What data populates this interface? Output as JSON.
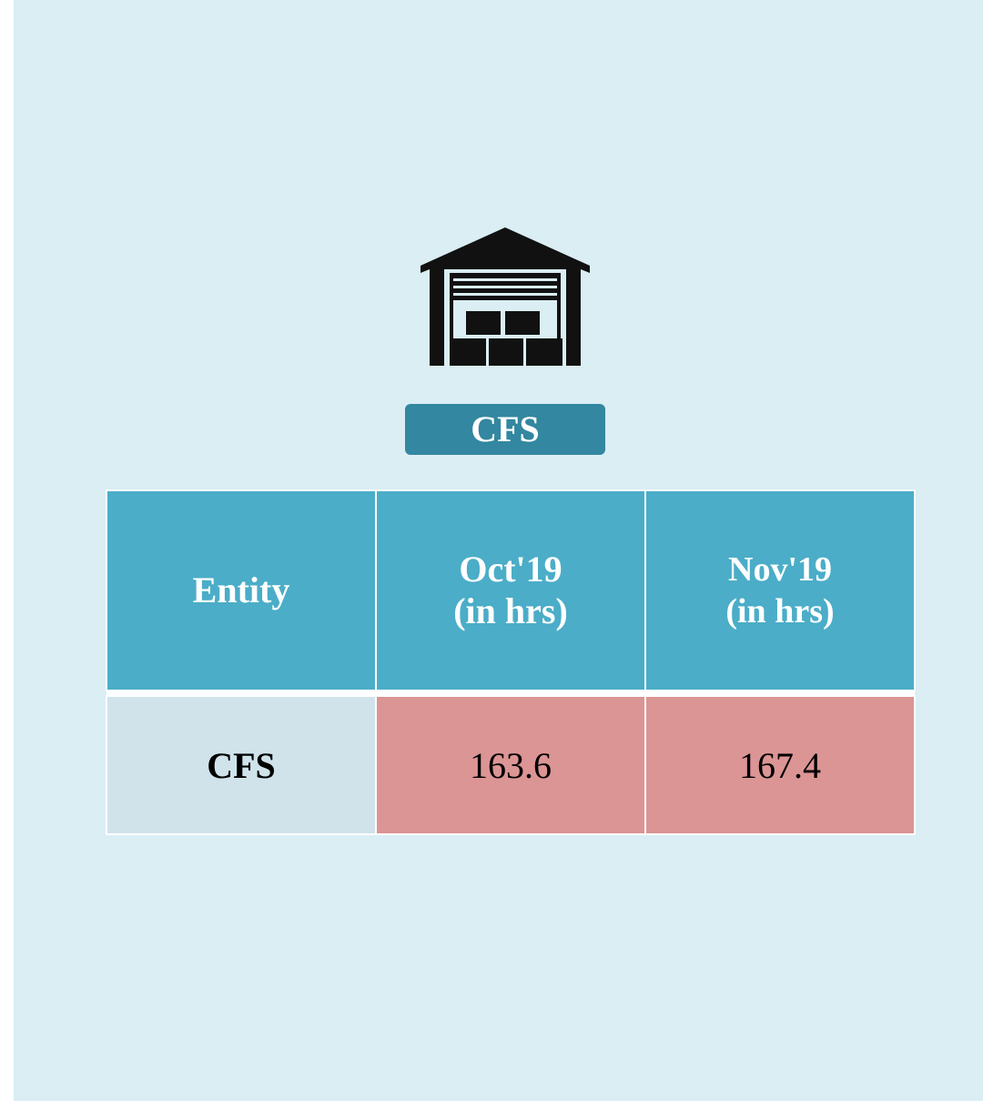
{
  "badge": "CFS",
  "table": {
    "header": [
      "Entity",
      "Oct'19\n(in hrs)",
      "Nov'19\n(in hrs)"
    ],
    "rows": [
      [
        "CFS",
        "163.6",
        "167.4"
      ]
    ]
  }
}
